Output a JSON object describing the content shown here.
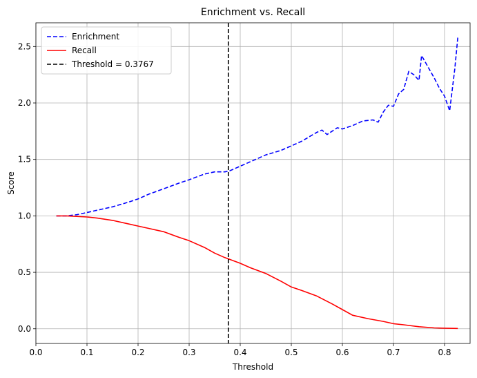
{
  "chart_data": {
    "type": "line",
    "title": "Enrichment vs. Recall",
    "xlabel": "Threshold",
    "ylabel": "Score",
    "xlim": [
      0.0,
      0.85
    ],
    "ylim": [
      -0.13,
      2.71
    ],
    "xticks": [
      0.0,
      0.1,
      0.2,
      0.3,
      0.4,
      0.5,
      0.6,
      0.7,
      0.8
    ],
    "xtick_labels": [
      "0.0",
      "0.1",
      "0.2",
      "0.3",
      "0.4",
      "0.5",
      "0.6",
      "0.7",
      "0.8"
    ],
    "yticks": [
      0.0,
      0.5,
      1.0,
      1.5,
      2.0,
      2.5
    ],
    "ytick_labels": [
      "0.0",
      "0.5",
      "1.0",
      "1.5",
      "2.0",
      "2.5"
    ],
    "grid": true,
    "legend_position": "top-left",
    "series": [
      {
        "name": "Enrichment",
        "color": "#0000ff",
        "style": "dashed",
        "x": [
          0.04,
          0.06,
          0.08,
          0.1,
          0.12,
          0.15,
          0.18,
          0.2,
          0.22,
          0.25,
          0.28,
          0.3,
          0.33,
          0.35,
          0.37,
          0.38,
          0.4,
          0.42,
          0.45,
          0.48,
          0.5,
          0.52,
          0.55,
          0.56,
          0.57,
          0.58,
          0.59,
          0.6,
          0.62,
          0.64,
          0.66,
          0.67,
          0.68,
          0.69,
          0.7,
          0.71,
          0.72,
          0.73,
          0.74,
          0.75,
          0.755,
          0.76,
          0.77,
          0.78,
          0.79,
          0.8,
          0.81,
          0.82,
          0.826
        ],
        "y": [
          1.0,
          1.0,
          1.01,
          1.03,
          1.05,
          1.08,
          1.12,
          1.15,
          1.19,
          1.24,
          1.29,
          1.32,
          1.37,
          1.39,
          1.39,
          1.4,
          1.44,
          1.48,
          1.54,
          1.58,
          1.62,
          1.66,
          1.74,
          1.76,
          1.72,
          1.75,
          1.78,
          1.77,
          1.8,
          1.84,
          1.85,
          1.83,
          1.92,
          1.98,
          1.97,
          2.08,
          2.12,
          2.28,
          2.25,
          2.2,
          2.42,
          2.38,
          2.3,
          2.22,
          2.13,
          2.06,
          1.93,
          2.3,
          2.58
        ]
      },
      {
        "name": "Recall",
        "color": "#ff0000",
        "style": "solid",
        "x": [
          0.04,
          0.06,
          0.08,
          0.1,
          0.12,
          0.15,
          0.18,
          0.2,
          0.22,
          0.25,
          0.28,
          0.3,
          0.33,
          0.35,
          0.37,
          0.4,
          0.42,
          0.45,
          0.48,
          0.5,
          0.52,
          0.55,
          0.58,
          0.6,
          0.62,
          0.65,
          0.68,
          0.7,
          0.72,
          0.75,
          0.78,
          0.8,
          0.826
        ],
        "y": [
          1.0,
          1.0,
          0.995,
          0.99,
          0.98,
          0.96,
          0.93,
          0.91,
          0.89,
          0.86,
          0.81,
          0.78,
          0.72,
          0.67,
          0.63,
          0.58,
          0.54,
          0.49,
          0.42,
          0.37,
          0.34,
          0.29,
          0.22,
          0.17,
          0.12,
          0.09,
          0.065,
          0.045,
          0.035,
          0.018,
          0.008,
          0.005,
          0.003
        ]
      },
      {
        "name": "Threshold = 0.3767",
        "color": "#000000",
        "style": "dashed",
        "vline_x": 0.3767
      }
    ]
  }
}
